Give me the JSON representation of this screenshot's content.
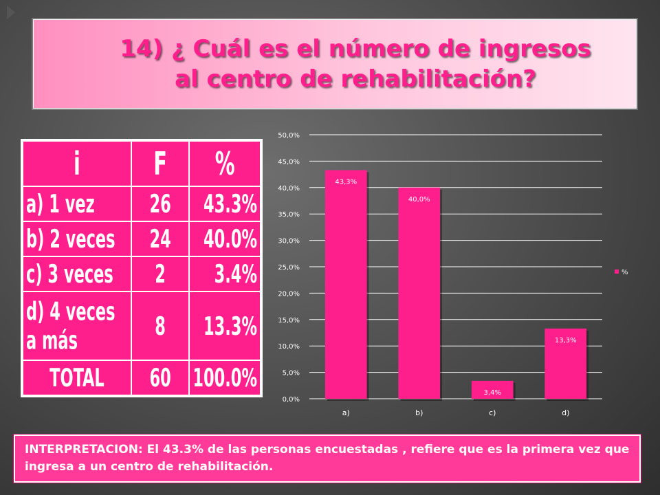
{
  "title": "14) ¿ Cuál es el número de ingresos al centro de rehabilitación?",
  "table": {
    "headers": [
      "i",
      "F",
      "%"
    ],
    "rows": [
      [
        "a) 1 vez",
        "26",
        "43.3%"
      ],
      [
        "b) 2 veces",
        "24",
        "40.0%"
      ],
      [
        "c) 3 veces",
        "2",
        "3.4%"
      ],
      [
        "d) 4 veces a más",
        "8",
        "13.3%"
      ],
      [
        "TOTAL",
        "60",
        "100.0%"
      ]
    ]
  },
  "chart_data": {
    "type": "bar",
    "categories": [
      "a)",
      "b)",
      "c)",
      "d)"
    ],
    "series": [
      {
        "name": "%",
        "values": [
          43.3,
          40.0,
          3.4,
          13.3
        ]
      }
    ],
    "data_labels": [
      "43,3%",
      "40,0%",
      "3,4%",
      "13,3%"
    ],
    "y_ticks": [
      "0,0%",
      "5,0%",
      "10,0%",
      "15,0%",
      "20,0%",
      "25,0%",
      "30,0%",
      "35,0%",
      "40,0%",
      "45,0%",
      "50,0%"
    ],
    "ylim": [
      0,
      50
    ],
    "grid": true,
    "legend": "right",
    "bar_color": "#ff1f8c"
  },
  "interpretation": "INTERPRETACION: El 43.3% de las personas encuestadas , refiere que es la primera vez que ingresa a un centro de rehabilitación.",
  "colors": {
    "accent": "#ff1f8c",
    "title_bg": "#ffc6dd",
    "background": "#4a4a4a"
  }
}
